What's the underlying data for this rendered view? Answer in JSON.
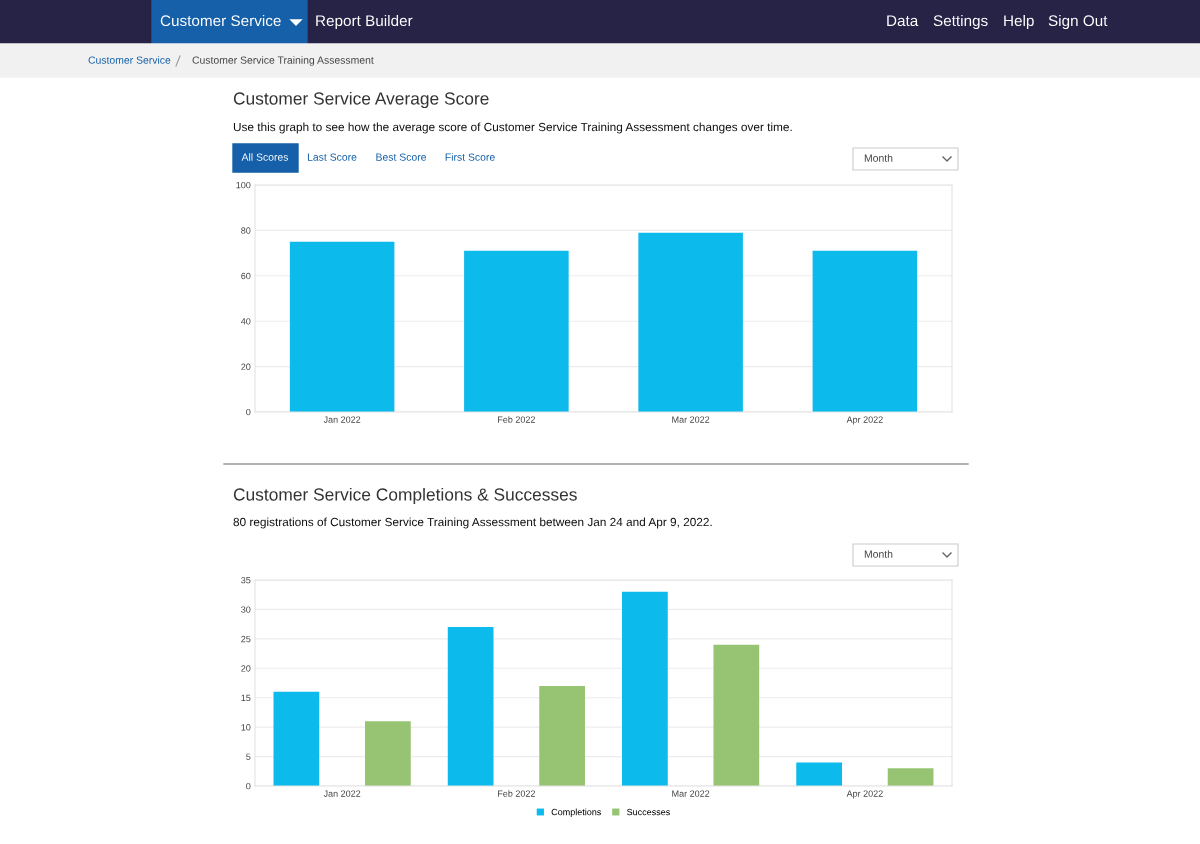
{
  "chart_data": [
    {
      "type": "bar",
      "title": "Customer Service Average Score",
      "subtitle": "Use this graph to see how the average score of Customer Service Training Assessment changes over time.",
      "categories": [
        "Jan 2022",
        "Feb 2022",
        "Mar 2022",
        "Apr 2022"
      ],
      "values": [
        75,
        71,
        79,
        71
      ],
      "color": "#0dbaec",
      "ylim": [
        0,
        100
      ],
      "yticks": [
        0,
        20,
        40,
        60,
        80,
        100
      ],
      "grid": "y",
      "annotations": [
        "Customer Service",
        "Report Builder",
        "Data",
        "Settings",
        "Help",
        "Sign Out",
        "Customer Service",
        "Customer Service Training Assessment",
        "All Scores",
        "Last Score",
        "Best Score",
        "First Score",
        "Month"
      ]
    },
    {
      "type": "bar",
      "title": "Customer Service Completions & Successes",
      "subtitle": "80 registrations of Customer Service Training Assessment between Jan 24 and Apr 9, 2022.",
      "categories": [
        "Jan 2022",
        "Feb 2022",
        "Mar 2022",
        "Apr 2022"
      ],
      "series": [
        {
          "name": "Completions",
          "color": "#0dbaec",
          "values": [
            16,
            27,
            33,
            4
          ]
        },
        {
          "name": "Successes",
          "color": "#97c472",
          "values": [
            11,
            17,
            24,
            3
          ]
        }
      ],
      "ylim": [
        0,
        35
      ],
      "yticks": [
        0,
        5,
        10,
        15,
        20,
        25,
        30,
        35
      ],
      "grid": "y",
      "legend": "bottom",
      "annotations": [
        "Month"
      ]
    }
  ]
}
